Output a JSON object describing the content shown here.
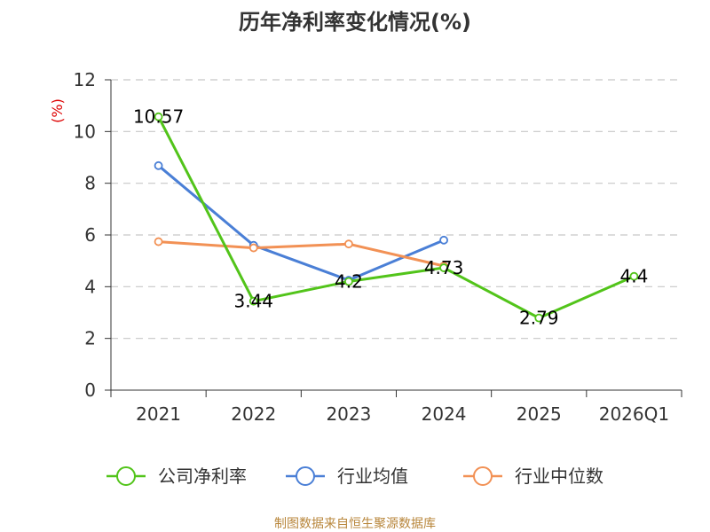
{
  "chart_data": {
    "type": "line",
    "title": "历年净利率变化情况(%)",
    "ylabel": "(%)",
    "xlabel": "",
    "categories": [
      "2021",
      "2022",
      "2023",
      "2024",
      "2025",
      "2026Q1"
    ],
    "ylim": [
      0,
      12
    ],
    "yticks": [
      0,
      2,
      4,
      6,
      8,
      10,
      12
    ],
    "grid": true,
    "legend_position": "bottom",
    "series": [
      {
        "name": "公司净利率",
        "color": "#52c41a",
        "values": [
          10.57,
          3.44,
          4.2,
          4.73,
          2.79,
          4.4
        ],
        "labels": [
          "10.57",
          "3.44",
          "4.2",
          "4.73",
          "2.79",
          "4.4"
        ]
      },
      {
        "name": "行业均值",
        "color": "#4a7fd6",
        "values": [
          8.68,
          5.6,
          4.25,
          5.8,
          null,
          null
        ]
      },
      {
        "name": "行业中位数",
        "color": "#f29155",
        "values": [
          5.74,
          5.5,
          5.65,
          4.8,
          null,
          null
        ]
      }
    ],
    "source": "制图数据来自恒生聚源数据库"
  }
}
